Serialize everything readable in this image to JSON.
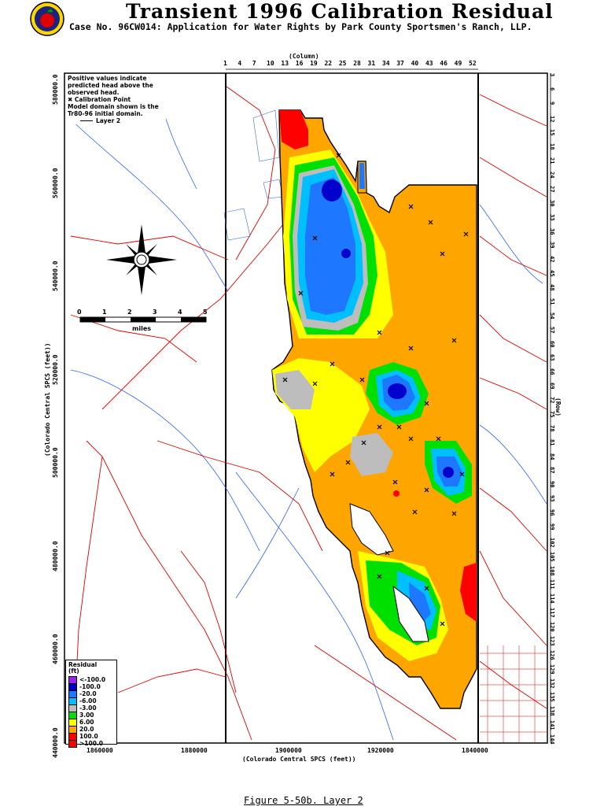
{
  "header": {
    "title": "Transient 1996 Calibration Residual",
    "subtitle": "Case No. 96CW014: Application for Water Rights by Park County Sportsmen's Ranch, LLP."
  },
  "caption": "Figure 5-50b.  Layer 2",
  "notes": {
    "line1": "Positive values indicate",
    "line2": "predicted head above the",
    "line3": "observed head.",
    "line4": "✖ Calibration Point",
    "line5": "Model domain shown is the",
    "line6": "Tr80-96 initial domain.",
    "line7": "Layer 2"
  },
  "legend": {
    "title_line1": "Residual",
    "title_line2": "(ft)",
    "items": [
      {
        "label": "<-100.0",
        "color": "#a020f0"
      },
      {
        "label": "-100.0",
        "color": "#0000cd"
      },
      {
        "label": "-20.0",
        "color": "#1e78ff"
      },
      {
        "label": "-6.00",
        "color": "#00bfff"
      },
      {
        "label": "-3.00",
        "color": "#bdbdbd"
      },
      {
        "label": "3.00",
        "color": "#00e000"
      },
      {
        "label": "6.00",
        "color": "#ffff00"
      },
      {
        "label": "20.0",
        "color": "#ffa500"
      },
      {
        "label": "100.0",
        "color": "#ff0000"
      },
      {
        "label": ">100.0",
        "color": "#ff0000"
      }
    ]
  },
  "scale": {
    "ticks": [
      "0",
      "1",
      "2",
      "3",
      "4",
      "5"
    ],
    "unit": "miles"
  },
  "axes": {
    "column_title": "(Column)",
    "column_ticks": [
      "1",
      "4",
      "7",
      "10",
      "13",
      "16",
      "19",
      "22",
      "25",
      "28",
      "31",
      "34",
      "37",
      "40",
      "43",
      "46",
      "49",
      "52"
    ],
    "row_title": "(Row)",
    "row_ticks": [
      "3",
      "6",
      "9",
      "12",
      "15",
      "18",
      "21",
      "24",
      "27",
      "30",
      "33",
      "36",
      "39",
      "42",
      "45",
      "48",
      "51",
      "54",
      "57",
      "60",
      "63",
      "66",
      "69",
      "72",
      "75",
      "78",
      "81",
      "84",
      "87",
      "90",
      "93",
      "96",
      "99",
      "102",
      "105",
      "108",
      "111",
      "114",
      "117",
      "120",
      "123",
      "126",
      "129",
      "132",
      "135",
      "138",
      "141",
      "144"
    ],
    "x_ticks": [
      "1860000",
      "1880000",
      "1900000",
      "1920000",
      "1840000"
    ],
    "x_title": "(Colorado Central SPCS (feet))",
    "y_ticks": [
      "580000.0",
      "560000.0",
      "540000.0",
      "520000.0",
      "500000.0",
      "480000.0",
      "460000.0",
      "440000.0"
    ],
    "y_title": "(Colorado Central SPCS (feet))"
  },
  "colors": {
    "road": "#dd0000",
    "label_blue": "#0000cc",
    "frame": "#000000"
  }
}
